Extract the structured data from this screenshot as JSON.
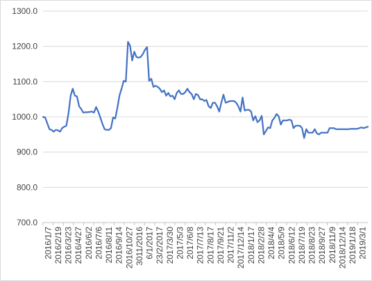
{
  "chart_data": {
    "type": "line",
    "title": "",
    "xlabel": "",
    "ylabel": "",
    "ylim": [
      700,
      1300
    ],
    "yticks": [
      "700.0",
      "800.0",
      "900.0",
      "1000.0",
      "1100.0",
      "1200.0",
      "1300.0"
    ],
    "grid": "horizontal",
    "legend": "none",
    "line_color": "#4472c4",
    "x_tick_labels": [
      "2016/1/7",
      "2016/2/19",
      "2016/3/23",
      "2016/4/27",
      "2016/6/2",
      "2016/7/6",
      "2016/8/11",
      "2016/9/14",
      "2016/10/27",
      "3011/2016",
      "6/1/2017",
      "23/2/2017",
      "2017/3/30",
      "2017/5/3",
      "2017/6/8",
      "2017/7/13",
      "2017/8/17",
      "2017/9/21",
      "2017/11/2",
      "2017/12/14",
      "2018/1/17",
      "2018/2/28",
      "2018/4/4",
      "2018/5/9",
      "2018/6/12",
      "2018/7/19",
      "2018/8/23",
      "2018/9/27",
      "2018/11/9",
      "2018/12/14",
      "2019/1/18",
      "2019/3/1"
    ],
    "values": [
      1000,
      998,
      982,
      965,
      963,
      958,
      963,
      962,
      958,
      968,
      972,
      975,
      1010,
      1060,
      1080,
      1060,
      1058,
      1030,
      1022,
      1012,
      1013,
      1013,
      1014,
      1015,
      1012,
      1028,
      1015,
      998,
      980,
      965,
      963,
      963,
      968,
      998,
      995,
      1025,
      1060,
      1080,
      1102,
      1100,
      1213,
      1202,
      1160,
      1185,
      1170,
      1168,
      1170,
      1178,
      1190,
      1198,
      1102,
      1108,
      1085,
      1088,
      1085,
      1080,
      1070,
      1075,
      1060,
      1068,
      1058,
      1060,
      1050,
      1068,
      1075,
      1065,
      1065,
      1070,
      1080,
      1070,
      1065,
      1050,
      1065,
      1062,
      1050,
      1050,
      1045,
      1048,
      1030,
      1025,
      1040,
      1040,
      1030,
      1015,
      1040,
      1063,
      1040,
      1042,
      1045,
      1045,
      1045,
      1040,
      1030,
      1015,
      1055,
      1018,
      1020,
      1020,
      1015,
      990,
      1002,
      985,
      990,
      1003,
      950,
      960,
      970,
      968,
      990,
      997,
      1008,
      1002,
      978,
      990,
      990,
      990,
      992,
      990,
      968,
      975,
      975,
      975,
      968,
      940,
      965,
      955,
      955,
      955,
      965,
      953,
      950,
      955,
      955,
      955,
      955,
      968,
      968,
      968,
      965,
      965,
      965,
      965,
      965,
      965,
      965,
      966,
      966,
      966,
      966,
      968,
      970,
      968,
      970,
      972
    ]
  }
}
